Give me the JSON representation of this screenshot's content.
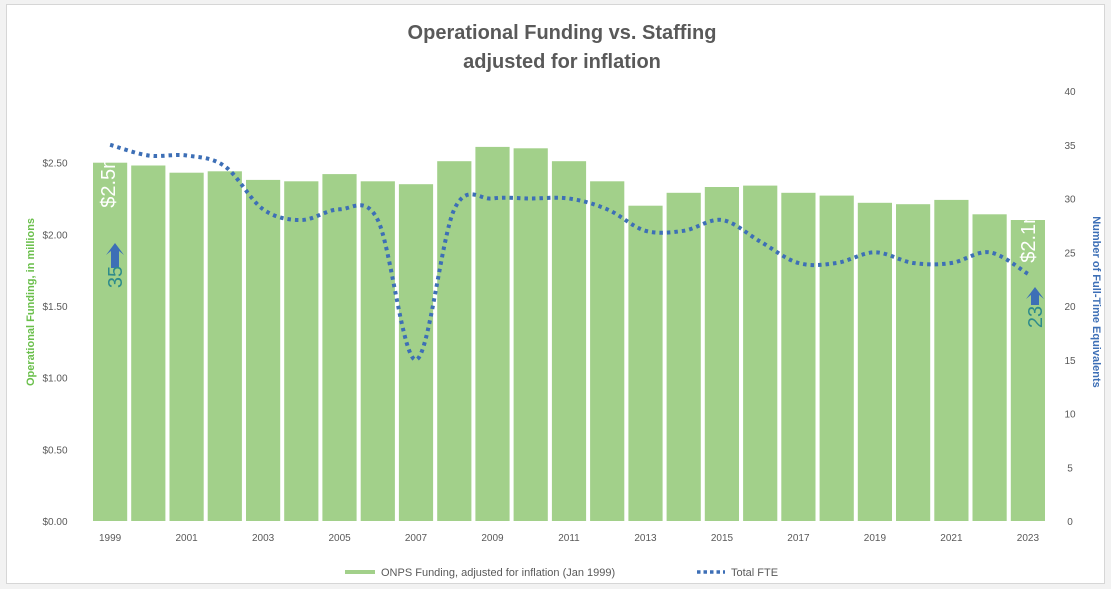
{
  "chart_data": {
    "type": "bar",
    "title": [
      "Operational Funding vs. Staffing",
      "adjusted for inflation"
    ],
    "categories": [
      "1999",
      "2000",
      "2001",
      "2002",
      "2003",
      "2004",
      "2005",
      "2006",
      "2007",
      "2008",
      "2009",
      "2010",
      "2011",
      "2012",
      "2013",
      "2014",
      "2015",
      "2016",
      "2017",
      "2018",
      "2019",
      "2020",
      "2021",
      "2022",
      "2023"
    ],
    "x_tick_labels": [
      "1999",
      "2001",
      "2003",
      "2005",
      "2007",
      "2009",
      "2011",
      "2013",
      "2015",
      "2017",
      "2019",
      "2021",
      "2023"
    ],
    "series": [
      {
        "name": "ONPS Funding, adjusted for inflation (Jan 1999)",
        "type": "bar",
        "axis": "left",
        "color": "#a2d08a",
        "values": [
          2.5,
          2.48,
          2.43,
          2.44,
          2.38,
          2.37,
          2.42,
          2.37,
          2.35,
          2.51,
          2.61,
          2.6,
          2.51,
          2.37,
          2.2,
          2.29,
          2.33,
          2.34,
          2.29,
          2.27,
          2.22,
          2.21,
          2.24,
          2.14,
          2.1
        ]
      },
      {
        "name": "Total FTE",
        "type": "line",
        "style": "dotted",
        "axis": "right",
        "color": "#3d6fb6",
        "values": [
          35,
          34,
          34,
          33,
          29,
          28,
          29,
          28,
          15,
          29,
          30,
          30,
          30,
          29,
          27,
          27,
          28,
          26,
          24,
          24,
          25,
          24,
          24,
          25,
          23
        ]
      }
    ],
    "y_left": {
      "label": "Operational Funding, in millions",
      "ylim": [
        0,
        3.0
      ],
      "ticks": [
        "$0.00",
        "$0.50",
        "$1.00",
        "$1.50",
        "$2.00",
        "$2.50"
      ],
      "label_color": "#6abf4b"
    },
    "y_right": {
      "label": "Number of Full-Time Equivalents",
      "ylim": [
        0,
        40
      ],
      "ticks": [
        "0",
        "5",
        "10",
        "15",
        "20",
        "25",
        "30",
        "35",
        "40"
      ],
      "label_color": "#3d6fb6"
    },
    "annotations": {
      "start_value": "$2.5m",
      "start_fte": "35",
      "end_value": "$2.1m",
      "end_fte": "23",
      "fte_color": "#2e8b8b"
    },
    "legend_position": "bottom",
    "grid": false
  }
}
